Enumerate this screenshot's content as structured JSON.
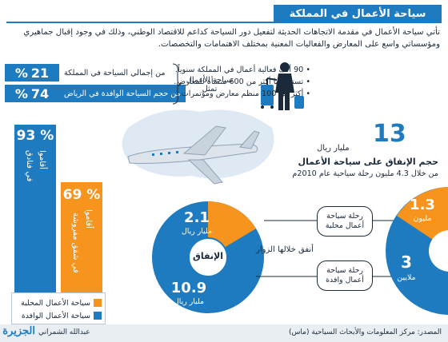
{
  "title": "سياحة الأعمال في المملكة",
  "intro": "تأتي سياحة الأعمال في مقدمة الاتجاهات الحديثة لتفعيل دور السياحة كداعم للاقتصاد الوطني، وذلك في وجود إقبال جماهيري ومؤسساتي واسع على المعارض والفعاليات المعنية بمختلف الاهتمامات والتخصصات.",
  "stats": [
    {
      "value": "21",
      "unit": "%",
      "label": "من إجمالي السياحة في المملكة"
    },
    {
      "value": "74",
      "unit": "%",
      "label": "من حجم السياحة الوافدة في الرياض"
    }
  ],
  "brace_label": "سياحة الأعمال تمثل",
  "bullets": [
    "90 ألف فعالية أعمال في المملكة سنوياً.",
    "تستضيفها أكثر من 600 منشأة للمعارض.",
    "أكثر من 100 منظم معارض ومؤتمرات."
  ],
  "spending": {
    "value": "13",
    "unit": "مليار ريال",
    "title": "حجم الإنفاق على سياحة الأعمال",
    "subtitle": "من خلال 4.3 مليون رحلة سياحية عام 2010م"
  },
  "bars": {
    "hotels_pct": "93",
    "hotels_label_1": "أقاموا",
    "hotels_label_2": "في فنادق",
    "apartments_pct": "69",
    "apartments_label_1": "أقاموا",
    "apartments_label_2": "في شقق مفروشة",
    "pct_sign": "%"
  },
  "legend": {
    "domestic": "سياحة الأعمال المحلية",
    "inbound": "سياحة الأعمال الوافدة"
  },
  "pie_spend": {
    "center": "الإنفاق",
    "domestic_value": "2.1",
    "domestic_unit": "مليار ريال",
    "inbound_value": "10.9",
    "inbound_unit": "مليار ريال",
    "spent_label": "أنفق خلالها الزوار"
  },
  "pie_trips": {
    "domestic_value": "1.3",
    "domestic_unit": "مليون",
    "inbound_value": "3",
    "inbound_unit": "ملايين"
  },
  "callouts": {
    "domestic": "رحلة سياحة أعمال محلية",
    "inbound": "رحلة سياحة أعمال وافدة"
  },
  "footer": {
    "source": "المصدر: مركز المعلومات والأبحاث السياحية (ماس)",
    "author": "عبدالله الشمراني",
    "logo": "الجزيرة"
  },
  "colors": {
    "blue": "#1f7bc0",
    "orange": "#f7941d",
    "dark": "#1b2a3a"
  }
}
